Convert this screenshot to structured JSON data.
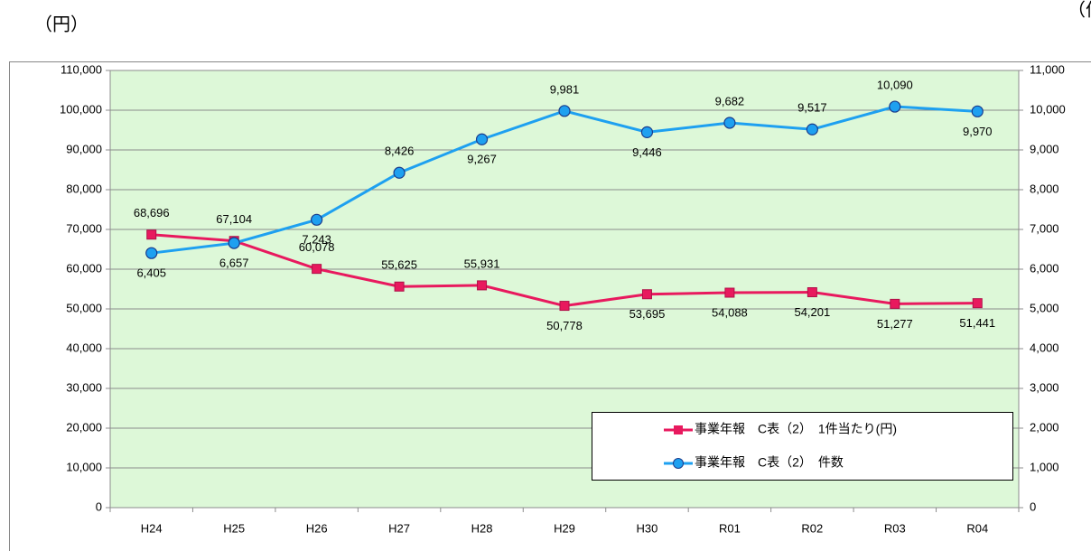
{
  "chart_data": {
    "type": "line",
    "y_label": "（円）",
    "y2_label": "（件）",
    "categories": [
      "H24",
      "H25",
      "H26",
      "H27",
      "H28",
      "H29",
      "H30",
      "R01",
      "R02",
      "R03",
      "R04"
    ],
    "series": [
      {
        "name": "事業年報　C表（2）　1件当たり(円)",
        "color": "#e8195e",
        "marker": "square",
        "values": [
          68696,
          67104,
          60078,
          55625,
          55931,
          50778,
          53695,
          54088,
          54201,
          51277,
          51441
        ],
        "value_labels": [
          "68,696",
          "67,104",
          "60,078",
          "55,625",
          "55,931",
          "50,778",
          "53,695",
          "54,088",
          "54,201",
          "51,277",
          "51,441"
        ]
      },
      {
        "name": "事業年報　C表（2）　件数",
        "color": "#1ea0f0",
        "marker": "circle",
        "axis": "y2",
        "values": [
          6405,
          6657,
          7243,
          8426,
          9267,
          9981,
          9446,
          9682,
          9517,
          10090,
          9970
        ],
        "value_labels": [
          "6,405",
          "6,657",
          "7,243",
          "8,426",
          "9,267",
          "9,981",
          "9,446",
          "9,682",
          "9,517",
          "10,090",
          "9,970"
        ]
      }
    ],
    "ylim": [
      0,
      110000
    ],
    "yticks": [
      0,
      {
        "value": 10000,
        "label": "10,000"
      },
      {
        "value": 20000,
        "label": "20,000"
      },
      {
        "value": 30000,
        "label": "30,000"
      },
      {
        "value": 40000,
        "label": "40,000"
      },
      {
        "value": 50000,
        "label": "50,000"
      },
      {
        "value": 60000,
        "label": "60,000"
      },
      {
        "value": 70000,
        "label": "70,000"
      },
      {
        "value": 80000,
        "label": "80,000"
      },
      {
        "value": 90000,
        "label": "90,000"
      },
      {
        "value": 100000,
        "label": "100,000"
      },
      {
        "value": 110000,
        "label": "110,000"
      }
    ],
    "y2lim": [
      0,
      11000
    ],
    "y2ticks": [
      0,
      {
        "value": 1000,
        "label": "1,000"
      },
      {
        "value": 2000,
        "label": "2,000"
      },
      {
        "value": 3000,
        "label": "3,000"
      },
      {
        "value": 4000,
        "label": "4,000"
      },
      {
        "value": 5000,
        "label": "5,000"
      },
      {
        "value": 6000,
        "label": "6,000"
      },
      {
        "value": 7000,
        "label": "7,000"
      },
      {
        "value": 8000,
        "label": "8,000"
      },
      {
        "value": 9000,
        "label": "9,000"
      },
      {
        "value": 10000,
        "label": "10,000"
      },
      {
        "value": 11000,
        "label": "11,000"
      }
    ],
    "grid": true,
    "plot_background": "#ddf8d8",
    "legend": "lower right"
  }
}
